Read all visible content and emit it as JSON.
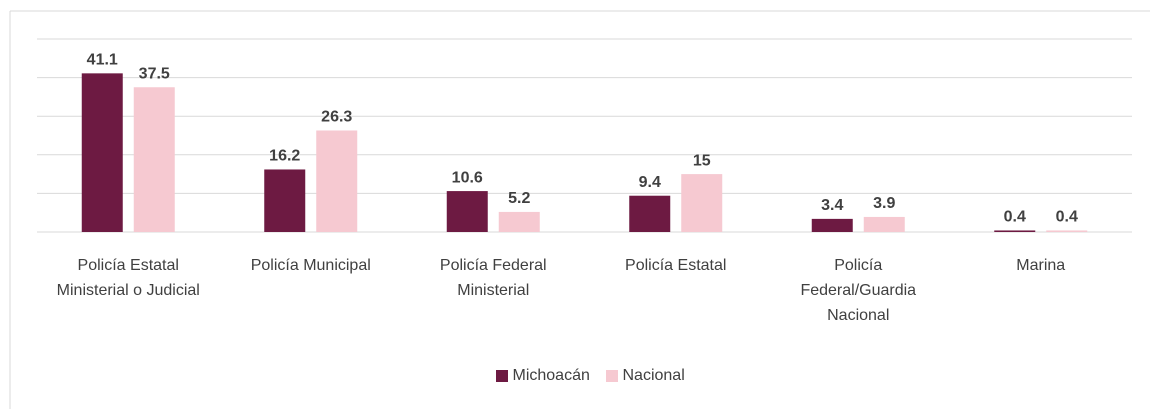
{
  "chart_data": {
    "type": "bar",
    "categories": [
      "Policía Estatal Ministerial o Judicial",
      "Policía Municipal",
      "Policía Federal Ministerial",
      "Policía Estatal",
      "Policía Federal/Guardia Nacional",
      "Marina"
    ],
    "series": [
      {
        "name": "Michoacán",
        "color": "#6d1a42",
        "values": [
          41.1,
          16.2,
          10.6,
          9.4,
          3.4,
          0.4
        ]
      },
      {
        "name": "Nacional",
        "color": "#f6c9d1",
        "values": [
          37.5,
          26.3,
          5.2,
          15,
          3.9,
          0.4
        ]
      }
    ],
    "ylim": [
      0,
      50
    ],
    "yticks": [
      0,
      10,
      20,
      30,
      40,
      50
    ],
    "grid": true,
    "legend": "bottom"
  }
}
